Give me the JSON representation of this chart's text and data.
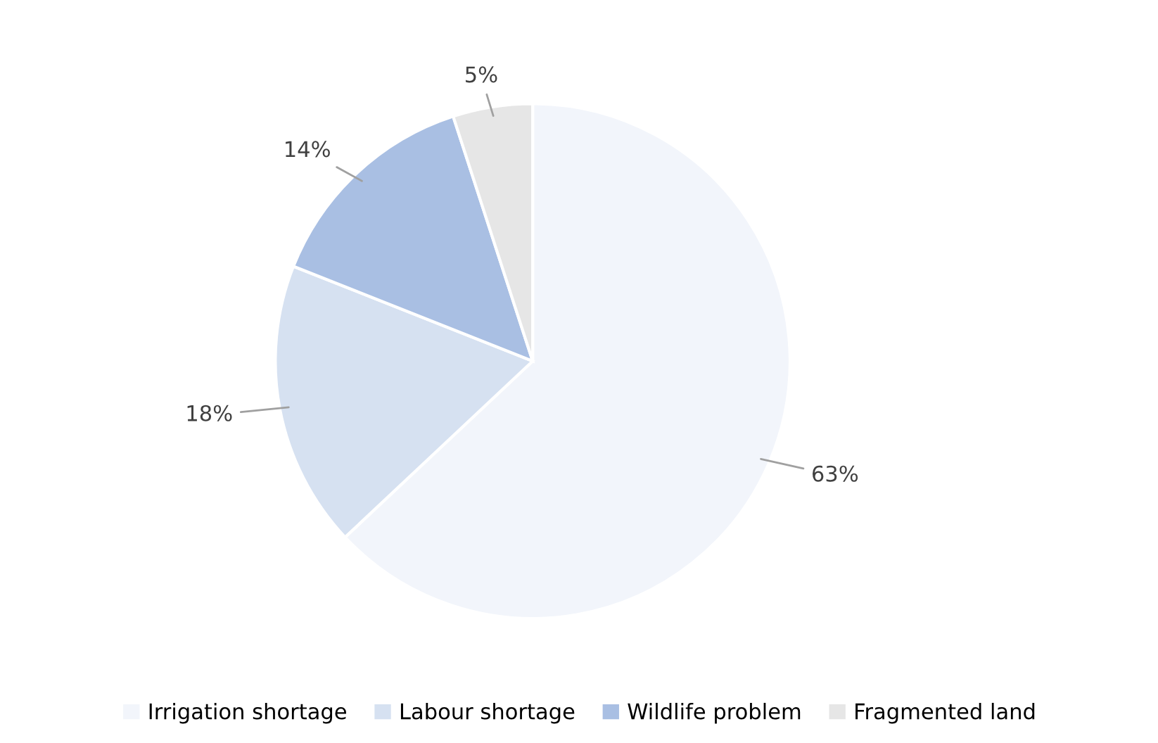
{
  "chart_data": {
    "type": "pie",
    "categories": [
      "Irrigation shortage",
      "Labour shortage",
      "Wildlife problem",
      "Fragmented land"
    ],
    "values": [
      63,
      18,
      14,
      5
    ],
    "colors": [
      "#f2f5fb",
      "#d6e1f1",
      "#a9bfe3",
      "#e6e6e6"
    ],
    "value_labels": [
      "63%",
      "18%",
      "14%",
      "5%"
    ],
    "legend": "bottom"
  }
}
